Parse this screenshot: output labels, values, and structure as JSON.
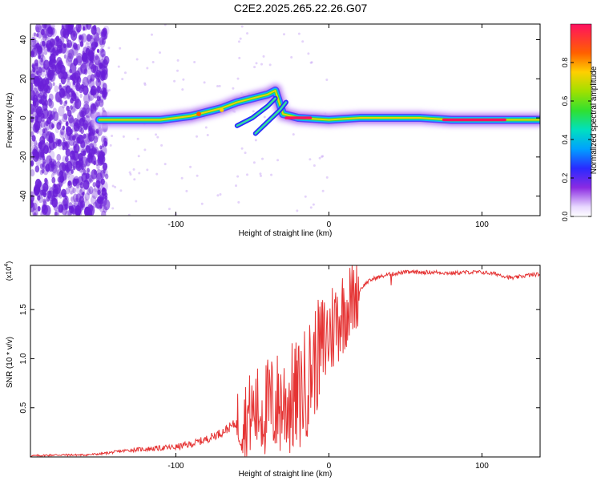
{
  "title": "C2E2.2025.265.22.26.G07",
  "colors": {
    "line": "#e53333",
    "dots": "#6a1fd8",
    "axis": "#000000"
  },
  "chart_data": [
    {
      "type": "heatmap",
      "name": "spectrogram",
      "xlabel": "Height of straight line (km)",
      "ylabel": "Frequency (Hz)",
      "xlim": [
        -195,
        138
      ],
      "ylim": [
        -50,
        48
      ],
      "xticks": [
        -100,
        0,
        100
      ],
      "xtick_labels": [
        "-100",
        "0",
        "100"
      ],
      "yticks": [
        -40,
        -20,
        0,
        20,
        40
      ],
      "ytick_labels": [
        "-40",
        "-20",
        "0",
        "20",
        "40"
      ],
      "colorbar": {
        "label": "Normalized spectral amplitude",
        "range": [
          0,
          1
        ],
        "ticks": [
          0.0,
          0.2,
          0.4,
          0.6,
          0.8
        ],
        "tick_labels": [
          "0.0",
          "0.2",
          "0.4",
          "0.6",
          "0.8"
        ]
      },
      "ridge": [
        [
          -150,
          -1
        ],
        [
          -130,
          -1
        ],
        [
          -110,
          -1
        ],
        [
          -90,
          1
        ],
        [
          -80,
          3
        ],
        [
          -70,
          5
        ],
        [
          -60,
          8
        ],
        [
          -50,
          10
        ],
        [
          -40,
          12
        ],
        [
          -35,
          14
        ],
        [
          -30,
          2
        ],
        [
          -20,
          0
        ],
        [
          0,
          -1
        ],
        [
          20,
          0
        ],
        [
          40,
          0
        ],
        [
          60,
          0
        ],
        [
          80,
          -1
        ],
        [
          100,
          -1
        ],
        [
          120,
          -1
        ],
        [
          138,
          -1
        ]
      ]
    },
    {
      "type": "line",
      "name": "snr",
      "xlabel": "Height of straight line (km)",
      "ylabel": "SNR (10 * v/v)",
      "multiplier": "(x10",
      "multiplier_exp": "4",
      "xlim": [
        -195,
        138
      ],
      "ylim": [
        0,
        1.95
      ],
      "xticks": [
        -100,
        0,
        100
      ],
      "xtick_labels": [
        "-100",
        "0",
        "100"
      ],
      "yticks": [
        0.5,
        1.0,
        1.5
      ],
      "ytick_labels": [
        "0.5",
        "1.0",
        "1.5"
      ],
      "x": [
        -195,
        -180,
        -160,
        -150,
        -140,
        -130,
        -120,
        -110,
        -100,
        -90,
        -80,
        -70,
        -60,
        -50,
        -40,
        -30,
        -20,
        -15,
        -10,
        -5,
        0,
        5,
        10,
        15,
        20,
        25,
        30,
        40,
        50,
        60,
        70,
        80,
        90,
        100,
        110,
        120,
        130,
        138
      ],
      "y": [
        0.01,
        0.02,
        0.02,
        0.03,
        0.05,
        0.07,
        0.08,
        0.09,
        0.1,
        0.13,
        0.18,
        0.25,
        0.35,
        0.45,
        0.5,
        0.55,
        0.6,
        0.75,
        0.95,
        1.1,
        1.25,
        1.4,
        1.5,
        1.6,
        1.7,
        1.78,
        1.82,
        1.86,
        1.88,
        1.88,
        1.88,
        1.87,
        1.88,
        1.88,
        1.86,
        1.82,
        1.85,
        1.86
      ]
    }
  ]
}
